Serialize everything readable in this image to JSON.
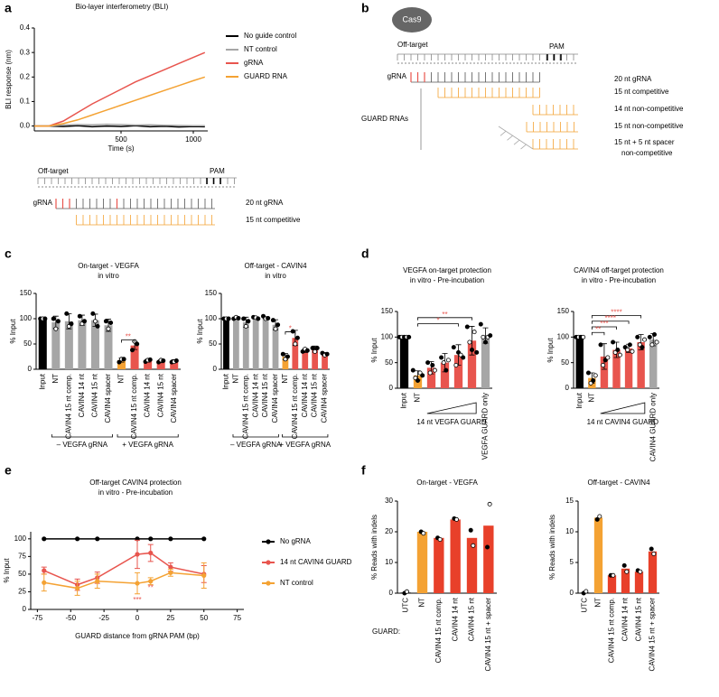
{
  "panel_labels": [
    "a",
    "b",
    "c",
    "d",
    "e",
    "f"
  ],
  "diagram_a": {
    "off_target": "Off-target",
    "pam": "PAM",
    "grna": "gRNA",
    "rows": [
      "20 nt gRNA",
      "15 nt competitive"
    ]
  },
  "diagram_b": {
    "protein": "Cas9",
    "off_target": "Off-target",
    "pam": "PAM",
    "grna": "gRNA",
    "group": "GUARD RNAs",
    "rows": [
      "20 nt gRNA",
      "15 nt competitive",
      "14 nt non-competitive",
      "15 nt non-competitive",
      "15 nt + 5 nt spacer",
      "non-competitive"
    ]
  },
  "chart_data": [
    {
      "type": "line",
      "title": "Bio-layer interferometry (BLI)",
      "xlabel": "Time (s)",
      "ylabel": "BLI response (nm)",
      "x": [
        -100,
        0,
        100,
        200,
        300,
        400,
        500,
        600,
        700,
        800,
        900,
        1000,
        1080
      ],
      "xlim": [
        -100,
        1100
      ],
      "xticks": [
        500,
        1000
      ],
      "ylim": [
        -0.02,
        0.4
      ],
      "yticks": [
        {
          "value": 0,
          "label": "0.0"
        },
        {
          "value": 0.1,
          "label": "0.1"
        },
        {
          "value": 0.2,
          "label": "0.2"
        },
        {
          "value": 0.3,
          "label": "0.3"
        },
        {
          "value": 0.4,
          "label": "0.4"
        }
      ],
      "series": [
        {
          "name": "No guide control",
          "color": "#000000",
          "values": [
            0,
            0,
            -0.002,
            0.001,
            -0.003,
            0,
            -0.002,
            0.001,
            -0.003,
            -0.001,
            -0.004,
            -0.002,
            -0.003
          ]
        },
        {
          "name": "NT control",
          "color": "#a6a6a6",
          "values": [
            0,
            0,
            0.004,
            0.006,
            0.005,
            0.007,
            0.006,
            0.004,
            0.005,
            0.003,
            0.002,
            0.001,
            0.001
          ]
        },
        {
          "name": "gRNA",
          "color": "#e8554e",
          "values": [
            0,
            0,
            0.02,
            0.055,
            0.09,
            0.12,
            0.15,
            0.18,
            0.205,
            0.23,
            0.255,
            0.28,
            0.3
          ]
        },
        {
          "name": "GUARD RNA",
          "color": "#f4a233",
          "values": [
            0,
            0,
            0.01,
            0.025,
            0.045,
            0.065,
            0.085,
            0.105,
            0.125,
            0.145,
            0.165,
            0.185,
            0.2
          ]
        }
      ]
    },
    {
      "type": "bar",
      "title": "On-target - VEGFA",
      "subtitle": "in vitro",
      "ylabel": "% Input",
      "ylim": [
        0,
        150
      ],
      "yticks": [
        0,
        50,
        100,
        150
      ],
      "categories": [
        "Input",
        "NT",
        "CAVIN4 15 nt comp.",
        "CAVIN4 14 nt",
        "CAVIN4 15 nt",
        "CAVIN4 spacer",
        "NT",
        "CAVIN4 15 nt comp.",
        "CAVIN4 14 nt",
        "CAVIN4 15 nt",
        "CAVIN4 spacer"
      ],
      "values": [
        100,
        93,
        95,
        97,
        97,
        87,
        18,
        47,
        17,
        16,
        16
      ],
      "errors": [
        0,
        12,
        15,
        10,
        12,
        12,
        4,
        8,
        3,
        3,
        3
      ],
      "points": [
        [
          100,
          100,
          100
        ],
        [
          100,
          80,
          95
        ],
        [
          110,
          85,
          90
        ],
        [
          105,
          90,
          95
        ],
        [
          110,
          95,
          85
        ],
        [
          95,
          80,
          92
        ],
        [
          14,
          20,
          20
        ],
        [
          38,
          55,
          50
        ],
        [
          15,
          18,
          19
        ],
        [
          14,
          18,
          17
        ],
        [
          14,
          15,
          17
        ]
      ],
      "colors": [
        "#000000",
        "#a6a6a6",
        "#a6a6a6",
        "#a6a6a6",
        "#a6a6a6",
        "#a6a6a6",
        "#f4a233",
        "#e8554e",
        "#e8554e",
        "#e8554e",
        "#e8554e"
      ],
      "group_labels": [
        "– VEGFA gRNA",
        "+ VEGFA gRNA"
      ],
      "annotations": [
        "**"
      ]
    },
    {
      "type": "bar",
      "title": "Off-target - CAVIN4",
      "subtitle": "in vitro",
      "ylabel": "% Input",
      "ylim": [
        0,
        150
      ],
      "yticks": [
        0,
        50,
        100,
        150
      ],
      "categories": [
        "Input",
        "NT",
        "CAVIN4 15 nt comp.",
        "CAVIN4 14 nt",
        "CAVIN4 15 nt",
        "CAVIN4 spacer",
        "NT",
        "CAVIN4 15 nt comp.",
        "CAVIN4 14 nt",
        "CAVIN4 15 nt",
        "CAVIN4 spacer"
      ],
      "values": [
        100,
        101,
        93,
        102,
        102,
        88,
        25,
        62,
        37,
        40,
        30
      ],
      "errors": [
        0,
        2,
        10,
        2,
        2,
        10,
        6,
        15,
        4,
        6,
        3
      ],
      "points": [
        [
          100,
          100,
          100
        ],
        [
          100,
          103,
          101
        ],
        [
          100,
          85,
          95
        ],
        [
          103,
          102,
          100
        ],
        [
          105,
          100,
          101
        ],
        [
          97,
          80,
          88
        ],
        [
          30,
          20,
          25
        ],
        [
          75,
          50,
          62
        ],
        [
          35,
          40,
          37
        ],
        [
          42,
          35,
          42
        ],
        [
          32,
          28,
          30
        ]
      ],
      "colors": [
        "#000000",
        "#a6a6a6",
        "#a6a6a6",
        "#a6a6a6",
        "#a6a6a6",
        "#a6a6a6",
        "#f4a233",
        "#e8554e",
        "#e8554e",
        "#e8554e",
        "#e8554e"
      ],
      "group_labels": [
        "– VEGFA gRNA",
        "+ VEGFA gRNA"
      ],
      "annotations": [
        "*"
      ]
    },
    {
      "type": "bar",
      "title": "VEGFA on-target protection",
      "subtitle": "in vitro - Pre-incubation",
      "ylabel": "% Input",
      "ylim": [
        0,
        150
      ],
      "yticks": [
        0,
        50,
        100,
        150
      ],
      "categories": [
        "Input",
        "NT",
        null,
        null,
        null,
        null,
        "VEGFA GUARD only"
      ],
      "values": [
        100,
        25,
        40,
        50,
        65,
        93,
        103
      ],
      "errors": [
        1,
        9,
        12,
        18,
        20,
        28,
        15
      ],
      "points": [
        [
          100,
          100,
          100,
          100,
          100
        ],
        [
          35,
          20,
          15,
          30,
          25
        ],
        [
          50,
          30,
          45,
          35
        ],
        [
          60,
          50,
          35,
          55
        ],
        [
          80,
          45,
          70,
          65,
          60
        ],
        [
          120,
          90,
          75,
          110,
          70
        ],
        [
          125,
          100,
          90,
          100,
          103
        ]
      ],
      "colors": [
        "#000000",
        "#f4a233",
        "#e8554e",
        "#e8554e",
        "#e8554e",
        "#e8554e",
        "#a6a6a6"
      ],
      "wedge_label": "14 nt VEGFA GUARD",
      "annotations": [
        "**",
        "*"
      ]
    },
    {
      "type": "bar",
      "title": "CAVIN4 off-target protection",
      "subtitle": "in vitro - Pre-incubation",
      "ylabel": "% Input",
      "ylim": [
        0,
        150
      ],
      "yticks": [
        0,
        50,
        100,
        150
      ],
      "categories": [
        "Input",
        "NT",
        null,
        null,
        null,
        null,
        "CAVIN4 GUARD only"
      ],
      "values": [
        100,
        20,
        62,
        75,
        78,
        90,
        95
      ],
      "errors": [
        1,
        10,
        25,
        15,
        8,
        15,
        12
      ],
      "points": [
        [
          100,
          100,
          100,
          100
        ],
        [
          30,
          10,
          15,
          25
        ],
        [
          85,
          45,
          55,
          60
        ],
        [
          90,
          70,
          75,
          65
        ],
        [
          80,
          75,
          85,
          72
        ],
        [
          100,
          85,
          80,
          95
        ],
        [
          100,
          85,
          105,
          90
        ]
      ],
      "colors": [
        "#000000",
        "#f4a233",
        "#e8554e",
        "#e8554e",
        "#e8554e",
        "#e8554e",
        "#a6a6a6"
      ],
      "wedge_label": "14 nt CAVIN4 GUARD",
      "annotations": [
        "****",
        "****",
        "***",
        "**"
      ]
    },
    {
      "type": "line",
      "title": "Off-target CAVIN4 protection",
      "subtitle": "in vitro - Pre-incubation",
      "xlabel": "GUARD distance from gRNA PAM (bp)",
      "ylabel": "% Input",
      "x": [
        -70,
        -45,
        -30,
        0,
        10,
        25,
        50
      ],
      "xlim": [
        -80,
        80
      ],
      "xticks": [
        -75,
        -50,
        -25,
        0,
        25,
        50,
        75
      ],
      "ylim": [
        0,
        110
      ],
      "yticks": [
        0,
        25,
        50,
        75,
        100
      ],
      "markers": true,
      "series": [
        {
          "name": "No gRNA",
          "color": "#000000",
          "values": [
            100,
            100,
            100,
            100,
            100,
            100,
            100
          ]
        },
        {
          "name": "14 nt CAVIN4 GUARD",
          "color": "#e8554e",
          "values": [
            55,
            35,
            45,
            78,
            80,
            60,
            50
          ],
          "errors": [
            5,
            8,
            8,
            20,
            12,
            6,
            12
          ]
        },
        {
          "name": "NT control",
          "color": "#f4a233",
          "values": [
            38,
            30,
            40,
            37,
            40,
            52,
            48
          ],
          "errors": [
            12,
            10,
            10,
            15,
            5,
            5,
            18
          ]
        }
      ],
      "annotations": [
        "**",
        "***"
      ]
    },
    {
      "type": "bar",
      "title": "On-target - VEGFA",
      "ylabel": "% Reads with indels",
      "ylim": [
        0,
        30
      ],
      "yticks": [
        0,
        10,
        20,
        30
      ],
      "categories": [
        "UTC",
        "NT",
        "CAVIN4 15 nt comp.",
        "CAVIN4 14 nt",
        "CAVIN4 15 nt",
        "CAVIN4 15 nt + spacer"
      ],
      "values": [
        0.2,
        20,
        18,
        24,
        18,
        22
      ],
      "points": [
        [
          0,
          0.5
        ],
        [
          20,
          19.5
        ],
        [
          18,
          17.5
        ],
        [
          24.3,
          24
        ],
        [
          20.5,
          15.5
        ],
        [
          15,
          29
        ]
      ],
      "colors": [
        "#000000",
        "#f4a233",
        "#e8402a",
        "#e8402a",
        "#e8402a",
        "#e8402a"
      ],
      "row_label": "GUARD:"
    },
    {
      "type": "bar",
      "title": "Off-target - CAVIN4",
      "ylabel": "% Reads with indels",
      "ylim": [
        0,
        15
      ],
      "yticks": [
        0,
        5,
        10,
        15
      ],
      "categories": [
        "UTC",
        "NT",
        "CAVIN4 15 nt comp.",
        "CAVIN4 14 nt",
        "CAVIN4 15 nt",
        "CAVIN4 15 nt + spacer"
      ],
      "values": [
        0.1,
        12.3,
        2.9,
        4.0,
        3.5,
        6.8
      ],
      "points": [
        [
          0,
          0.3
        ],
        [
          12,
          12.5
        ],
        [
          2.9,
          2.9
        ],
        [
          4.5,
          3.5
        ],
        [
          3.7,
          3.5
        ],
        [
          7.2,
          6.4
        ]
      ],
      "colors": [
        "#000000",
        "#f4a233",
        "#e8402a",
        "#e8402a",
        "#e8402a",
        "#e8402a"
      ]
    }
  ]
}
